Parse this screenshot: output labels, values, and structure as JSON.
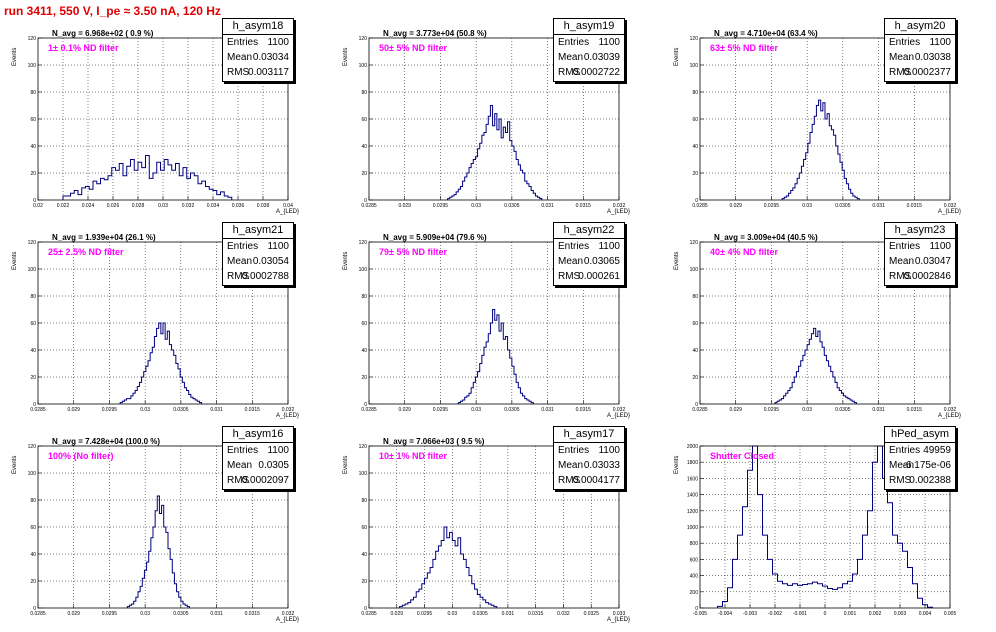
{
  "run_title": "run 3411,   550 V, I_pe ≈ 3.50 nA, 120 Hz",
  "colors": {
    "histogram": "#000080",
    "grid": "#000000",
    "title": "#e00000",
    "filter_text": "#ff00ff"
  },
  "chart_data": [
    {
      "type": "histogram",
      "name": "h_asym18",
      "navg": "N_avg = 6.968e+02 ( 0.9 %)",
      "filter": "1± 0.1% ND filter",
      "stats": {
        "entries_label": "Entries",
        "entries": "1100",
        "mean_label": "Mean",
        "mean": "0.03034",
        "rms_label": "RMS",
        "rms": "0.003117"
      },
      "ylabel": "Events",
      "xlabel": "A_{LED}",
      "xlim": [
        0.02,
        0.04
      ],
      "ylim": [
        0,
        120
      ],
      "xticks": [
        "0.02",
        "0.022",
        "0.024",
        "0.026",
        "0.028",
        "0.03",
        "0.032",
        "0.034",
        "0.036",
        "0.038",
        "0.04"
      ],
      "xtick_values": [
        0.02,
        0.022,
        0.024,
        0.026,
        0.028,
        0.03,
        0.032,
        0.034,
        0.036,
        0.038,
        0.04
      ],
      "yticks": [
        "0",
        "20",
        "40",
        "60",
        "80",
        "100",
        "120"
      ],
      "ytick_values": [
        0,
        20,
        40,
        60,
        80,
        100,
        120
      ],
      "grid": true,
      "bin_start": 0.022,
      "bin_width": 0.0003,
      "counts": [
        3,
        3,
        5,
        7,
        4,
        9,
        10,
        8,
        14,
        12,
        16,
        15,
        18,
        24,
        22,
        27,
        18,
        25,
        30,
        22,
        28,
        24,
        33,
        16,
        20,
        28,
        22,
        30,
        26,
        22,
        27,
        18,
        24,
        16,
        20,
        18,
        12,
        14,
        10,
        8,
        7,
        4,
        6,
        3,
        2
      ]
    },
    {
      "type": "histogram",
      "name": "h_asym19",
      "navg": "N_avg = 3.773e+04 (50.8 %)",
      "filter": "50± 5% ND filter",
      "stats": {
        "entries_label": "Entries",
        "entries": "1100",
        "mean_label": "Mean",
        "mean": "0.03039",
        "rms_label": "RMS",
        "rms": "0.0002722"
      },
      "ylabel": "Events",
      "xlabel": "A_{LED}",
      "xlim": [
        0.0285,
        0.032
      ],
      "ylim": [
        0,
        120
      ],
      "xticks": [
        "0.0285",
        "0.029",
        "0.0295",
        "0.03",
        "0.0305",
        "0.031",
        "0.0315",
        "0.032"
      ],
      "xtick_values": [
        0.0285,
        0.029,
        0.0295,
        0.03,
        0.0305,
        0.031,
        0.0315,
        0.032
      ],
      "yticks": [
        "0",
        "20",
        "40",
        "60",
        "80",
        "100",
        "120"
      ],
      "ytick_values": [
        0,
        20,
        40,
        60,
        80,
        100,
        120
      ],
      "grid": true,
      "bin_start": 0.0296,
      "bin_width": 3e-05,
      "counts": [
        1,
        2,
        3,
        4,
        6,
        8,
        10,
        14,
        17,
        20,
        24,
        27,
        30,
        32,
        38,
        42,
        48,
        50,
        56,
        62,
        70,
        55,
        64,
        52,
        60,
        46,
        54,
        50,
        58,
        44,
        40,
        36,
        30,
        26,
        22,
        20,
        14,
        12,
        10,
        7,
        5,
        3,
        2,
        1
      ]
    },
    {
      "type": "histogram",
      "name": "h_asym20",
      "navg": "N_avg = 4.710e+04 (63.4 %)",
      "filter": "63± 5% ND filter",
      "stats": {
        "entries_label": "Entries",
        "entries": "1100",
        "mean_label": "Mean",
        "mean": "0.03038",
        "rms_label": "RMS",
        "rms": "0.0002377"
      },
      "ylabel": "Events",
      "xlabel": "A_{LED}",
      "xlim": [
        0.0285,
        0.032
      ],
      "ylim": [
        0,
        120
      ],
      "xticks": [
        "0.0285",
        "0.029",
        "0.0295",
        "0.03",
        "0.0305",
        "0.031",
        "0.0315",
        "0.032"
      ],
      "xtick_values": [
        0.0285,
        0.029,
        0.0295,
        0.03,
        0.0305,
        0.031,
        0.0315,
        0.032
      ],
      "yticks": [
        "0",
        "20",
        "40",
        "60",
        "80",
        "100",
        "120"
      ],
      "ytick_values": [
        0,
        20,
        40,
        60,
        80,
        100,
        120
      ],
      "grid": true,
      "bin_start": 0.02965,
      "bin_width": 3e-05,
      "counts": [
        1,
        2,
        3,
        5,
        7,
        9,
        12,
        16,
        20,
        25,
        30,
        35,
        42,
        50,
        56,
        62,
        70,
        74,
        66,
        72,
        60,
        64,
        55,
        52,
        48,
        40,
        34,
        28,
        22,
        16,
        12,
        8,
        5,
        3,
        2,
        1
      ]
    },
    {
      "type": "histogram",
      "name": "h_asym21",
      "navg": "N_avg = 1.939e+04 (26.1 %)",
      "filter": "25± 2.5% ND filter",
      "stats": {
        "entries_label": "Entries",
        "entries": "1100",
        "mean_label": "Mean",
        "mean": "0.03054",
        "rms_label": "RMS",
        "rms": "0.0002788"
      },
      "ylabel": "Events",
      "xlabel": "A_{LED}",
      "xlim": [
        0.0285,
        0.032
      ],
      "ylim": [
        0,
        120
      ],
      "xticks": [
        "0.0285",
        "0.029",
        "0.0295",
        "0.03",
        "0.0305",
        "0.031",
        "0.0315",
        "0.032"
      ],
      "xtick_values": [
        0.0285,
        0.029,
        0.0295,
        0.03,
        0.0305,
        0.031,
        0.0315,
        0.032
      ],
      "yticks": [
        "0",
        "20",
        "40",
        "60",
        "80",
        "100",
        "120"
      ],
      "ytick_values": [
        0,
        20,
        40,
        60,
        80,
        100,
        120
      ],
      "grid": true,
      "bin_start": 0.02965,
      "bin_width": 3e-05,
      "counts": [
        1,
        2,
        3,
        4,
        4,
        6,
        8,
        10,
        13,
        16,
        20,
        24,
        28,
        32,
        38,
        42,
        50,
        56,
        60,
        52,
        60,
        48,
        54,
        44,
        40,
        36,
        30,
        26,
        20,
        16,
        12,
        10,
        7,
        5,
        4,
        3,
        2,
        1
      ]
    },
    {
      "type": "histogram",
      "name": "h_asym22",
      "navg": "N_avg = 5.909e+04 (79.6 %)",
      "filter": "79± 5% ND filter",
      "stats": {
        "entries_label": "Entries",
        "entries": "1100",
        "mean_label": "Mean",
        "mean": "0.03065",
        "rms_label": "RMS",
        "rms": "0.000261"
      },
      "ylabel": "Events",
      "xlabel": "A_{LED}",
      "xlim": [
        0.0285,
        0.032
      ],
      "ylim": [
        0,
        120
      ],
      "xticks": [
        "0.0285",
        "0.029",
        "0.0295",
        "0.03",
        "0.0305",
        "0.031",
        "0.0315",
        "0.032"
      ],
      "xtick_values": [
        0.0285,
        0.029,
        0.0295,
        0.03,
        0.0305,
        0.031,
        0.0315,
        0.032
      ],
      "yticks": [
        "0",
        "20",
        "40",
        "60",
        "80",
        "100",
        "120"
      ],
      "ytick_values": [
        0,
        20,
        40,
        60,
        80,
        100,
        120
      ],
      "grid": true,
      "bin_start": 0.02975,
      "bin_width": 3e-05,
      "counts": [
        1,
        2,
        3,
        5,
        6,
        8,
        12,
        16,
        20,
        24,
        30,
        36,
        42,
        46,
        52,
        60,
        70,
        62,
        66,
        54,
        60,
        48,
        50,
        40,
        34,
        28,
        22,
        16,
        12,
        8,
        6,
        4,
        3,
        2,
        1
      ]
    },
    {
      "type": "histogram",
      "name": "h_asym23",
      "navg": "N_avg = 3.009e+04 (40.5 %)",
      "filter": "40± 4% ND filter",
      "stats": {
        "entries_label": "Entries",
        "entries": "1100",
        "mean_label": "Mean",
        "mean": "0.03047",
        "rms_label": "RMS",
        "rms": "0.0002846"
      },
      "ylabel": "Events",
      "xlabel": "A_{LED}",
      "xlim": [
        0.0285,
        0.032
      ],
      "ylim": [
        0,
        120
      ],
      "xticks": [
        "0.0285",
        "0.029",
        "0.0295",
        "0.03",
        "0.0305",
        "0.031",
        "0.0315",
        "0.032"
      ],
      "xtick_values": [
        0.0285,
        0.029,
        0.0295,
        0.03,
        0.0305,
        0.031,
        0.0315,
        0.032
      ],
      "yticks": [
        "0",
        "20",
        "40",
        "60",
        "80",
        "100",
        "120"
      ],
      "ytick_values": [
        0,
        20,
        40,
        60,
        80,
        100,
        120
      ],
      "grid": true,
      "bin_start": 0.02955,
      "bin_width": 3e-05,
      "counts": [
        1,
        2,
        3,
        4,
        6,
        8,
        10,
        12,
        16,
        20,
        24,
        28,
        32,
        36,
        40,
        44,
        48,
        52,
        56,
        50,
        54,
        46,
        42,
        36,
        32,
        28,
        24,
        20,
        16,
        12,
        10,
        8,
        6,
        5,
        4,
        3,
        2,
        1
      ]
    },
    {
      "type": "histogram",
      "name": "h_asym16",
      "navg": "N_avg = 7.428e+04 (100.0 %)",
      "filter": "100% (No filter)",
      "stats": {
        "entries_label": "Entries",
        "entries": "1100",
        "mean_label": "Mean",
        "mean": "0.0305",
        "rms_label": "RMS",
        "rms": "0.0002097"
      },
      "ylabel": "Events",
      "xlabel": "A_{LED}",
      "xlim": [
        0.0285,
        0.032
      ],
      "ylim": [
        0,
        120
      ],
      "xticks": [
        "0.0285",
        "0.029",
        "0.0295",
        "0.03",
        "0.0305",
        "0.031",
        "0.0315",
        "0.032"
      ],
      "xtick_values": [
        0.0285,
        0.029,
        0.0295,
        0.03,
        0.0305,
        0.031,
        0.0315,
        0.032
      ],
      "yticks": [
        "0",
        "20",
        "40",
        "60",
        "80",
        "100",
        "120"
      ],
      "ytick_values": [
        0,
        20,
        40,
        60,
        80,
        100,
        120
      ],
      "grid": true,
      "bin_start": 0.02975,
      "bin_width": 3e-05,
      "counts": [
        1,
        2,
        3,
        5,
        8,
        12,
        16,
        22,
        28,
        34,
        42,
        52,
        60,
        72,
        83,
        70,
        76,
        60,
        56,
        44,
        36,
        26,
        18,
        12,
        8,
        5,
        3,
        2,
        1
      ]
    },
    {
      "type": "histogram",
      "name": "h_asym17",
      "navg": "N_avg = 7.066e+03 ( 9.5 %)",
      "filter": "10± 1% ND filter",
      "stats": {
        "entries_label": "Entries",
        "entries": "1100",
        "mean_label": "Mean",
        "mean": "0.03033",
        "rms_label": "RMS",
        "rms": "0.0004177"
      },
      "ylabel": "Events",
      "xlabel": "A_{LED}",
      "xlim": [
        0.0285,
        0.033
      ],
      "ylim": [
        0,
        120
      ],
      "xticks": [
        "0.0285",
        "0.029",
        "0.0295",
        "0.03",
        "0.0305",
        "0.031",
        "0.0315",
        "0.032",
        "0.0325",
        "0.033"
      ],
      "xtick_values": [
        0.0285,
        0.029,
        0.0295,
        0.03,
        0.0305,
        0.031,
        0.0315,
        0.032,
        0.0325,
        0.033
      ],
      "yticks": [
        "0",
        "20",
        "40",
        "60",
        "80",
        "100",
        "120"
      ],
      "ytick_values": [
        0,
        20,
        40,
        60,
        80,
        100,
        120
      ],
      "grid": true,
      "bin_start": 0.02905,
      "bin_width": 5e-05,
      "counts": [
        1,
        2,
        3,
        4,
        6,
        8,
        12,
        14,
        18,
        22,
        26,
        30,
        36,
        42,
        46,
        50,
        60,
        52,
        56,
        50,
        46,
        52,
        40,
        36,
        30,
        24,
        18,
        14,
        10,
        8,
        6,
        4,
        3,
        2,
        1
      ]
    },
    {
      "type": "histogram",
      "name": "hPed_asym",
      "navg": "",
      "filter": "Shutter Closed",
      "stats": {
        "entries_label": "Entries",
        "entries": "49959",
        "mean_label": "Mean",
        "mean": "-6.175e-06",
        "rms_label": "RMS",
        "rms": "0.002388"
      },
      "ylabel": "Events",
      "xlabel": "",
      "xlim": [
        -0.005,
        0.005
      ],
      "ylim": [
        0,
        2000
      ],
      "xticks": [
        "-0.005",
        "-0.004",
        "-0.003",
        "-0.002",
        "-0.001",
        "0",
        "0.001",
        "0.002",
        "0.003",
        "0.004",
        "0.005"
      ],
      "xtick_values": [
        -0.005,
        -0.004,
        -0.003,
        -0.002,
        -0.001,
        0,
        0.001,
        0.002,
        0.003,
        0.004,
        0.005
      ],
      "yticks": [
        "0",
        "200",
        "400",
        "600",
        "800",
        "1000",
        "1200",
        "1400",
        "1600",
        "1800",
        "2000"
      ],
      "ytick_values": [
        0,
        200,
        400,
        600,
        800,
        1000,
        1200,
        1400,
        1600,
        1800,
        2000
      ],
      "grid": true,
      "bin_start": -0.0043,
      "bin_width": 0.0002,
      "counts": [
        20,
        80,
        250,
        600,
        900,
        1250,
        1700,
        2000,
        1400,
        900,
        600,
        420,
        330,
        300,
        280,
        300,
        280,
        290,
        300,
        320,
        300,
        270,
        240,
        230,
        250,
        300,
        330,
        420,
        600,
        900,
        1200,
        1800,
        2000,
        1600,
        1300,
        900,
        800,
        700,
        500,
        300,
        120,
        40,
        10
      ]
    }
  ]
}
